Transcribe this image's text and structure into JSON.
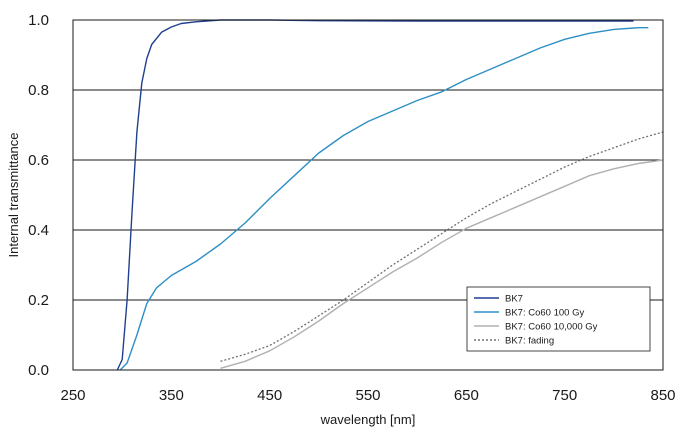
{
  "chart_data": {
    "type": "line",
    "title": "",
    "xlabel": "wavelength [nm]",
    "ylabel": "Internal transmittance",
    "xlim": [
      250,
      850
    ],
    "ylim": [
      0,
      1.0
    ],
    "x_ticks": [
      250,
      350,
      450,
      550,
      650,
      750,
      850
    ],
    "x_tick_labels": [
      "250",
      "350",
      "450",
      "550",
      "650",
      "750",
      "850"
    ],
    "y_ticks": [
      0,
      0.2,
      0.4,
      0.6,
      0.8,
      1.0
    ],
    "y_tick_labels": [
      "0.0",
      "0.2",
      "0.4",
      "0.6",
      "0.8",
      "1.0"
    ],
    "grid": "horizontal",
    "legend_position": "bottom-right",
    "series": [
      {
        "name": "BK7",
        "color": "#1f3f8f",
        "style": "solid",
        "points": [
          [
            295,
            0.0
          ],
          [
            300,
            0.03
          ],
          [
            305,
            0.2
          ],
          [
            310,
            0.45
          ],
          [
            315,
            0.68
          ],
          [
            320,
            0.82
          ],
          [
            325,
            0.89
          ],
          [
            330,
            0.93
          ],
          [
            340,
            0.965
          ],
          [
            350,
            0.98
          ],
          [
            360,
            0.99
          ],
          [
            375,
            0.995
          ],
          [
            400,
            1.0
          ],
          [
            450,
            1.0
          ],
          [
            500,
            0.998
          ],
          [
            600,
            0.997
          ],
          [
            700,
            0.997
          ],
          [
            820,
            0.997
          ]
        ]
      },
      {
        "name": "BK7: Co60 100 Gy",
        "color": "#2e8fc6",
        "style": "solid",
        "points": [
          [
            298,
            0.0
          ],
          [
            305,
            0.02
          ],
          [
            315,
            0.1
          ],
          [
            325,
            0.19
          ],
          [
            335,
            0.235
          ],
          [
            350,
            0.27
          ],
          [
            375,
            0.31
          ],
          [
            400,
            0.36
          ],
          [
            425,
            0.42
          ],
          [
            450,
            0.49
          ],
          [
            475,
            0.555
          ],
          [
            500,
            0.62
          ],
          [
            525,
            0.67
          ],
          [
            550,
            0.71
          ],
          [
            575,
            0.74
          ],
          [
            600,
            0.77
          ],
          [
            625,
            0.795
          ],
          [
            650,
            0.83
          ],
          [
            675,
            0.86
          ],
          [
            700,
            0.89
          ],
          [
            725,
            0.92
          ],
          [
            750,
            0.945
          ],
          [
            775,
            0.962
          ],
          [
            800,
            0.973
          ],
          [
            825,
            0.978
          ],
          [
            835,
            0.978
          ]
        ]
      },
      {
        "name": "BK7: Co60 10,000 Gy",
        "color": "#b0b0b0",
        "style": "solid",
        "points": [
          [
            400,
            0.005
          ],
          [
            425,
            0.025
          ],
          [
            450,
            0.055
          ],
          [
            475,
            0.095
          ],
          [
            500,
            0.14
          ],
          [
            525,
            0.19
          ],
          [
            550,
            0.235
          ],
          [
            575,
            0.28
          ],
          [
            600,
            0.32
          ],
          [
            625,
            0.365
          ],
          [
            650,
            0.405
          ],
          [
            675,
            0.435
          ],
          [
            700,
            0.465
          ],
          [
            725,
            0.495
          ],
          [
            750,
            0.525
          ],
          [
            775,
            0.555
          ],
          [
            800,
            0.575
          ],
          [
            825,
            0.59
          ],
          [
            850,
            0.6
          ]
        ]
      },
      {
        "name": "BK7: fading",
        "color": "#707070",
        "style": "dotted",
        "points": [
          [
            400,
            0.025
          ],
          [
            425,
            0.045
          ],
          [
            450,
            0.07
          ],
          [
            475,
            0.11
          ],
          [
            500,
            0.155
          ],
          [
            525,
            0.2
          ],
          [
            550,
            0.25
          ],
          [
            575,
            0.3
          ],
          [
            600,
            0.345
          ],
          [
            625,
            0.39
          ],
          [
            650,
            0.435
          ],
          [
            675,
            0.475
          ],
          [
            700,
            0.51
          ],
          [
            725,
            0.545
          ],
          [
            750,
            0.58
          ],
          [
            775,
            0.61
          ],
          [
            800,
            0.635
          ],
          [
            825,
            0.66
          ],
          [
            850,
            0.68
          ]
        ]
      }
    ]
  }
}
